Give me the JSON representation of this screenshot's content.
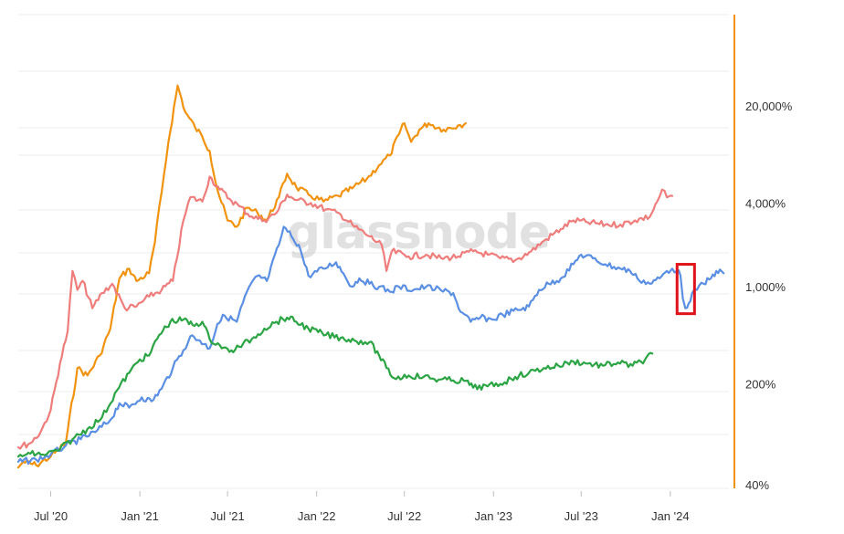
{
  "watermark": "glassnode",
  "chart_data": {
    "type": "line",
    "y_scale": "log",
    "ylim": [
      30,
      60000
    ],
    "grid": true,
    "x_ticks": [
      "Jul '20",
      "Jan '21",
      "Jul '21",
      "Jan '22",
      "Jul '22",
      "Jan '23",
      "Jul '23",
      "Jan '24"
    ],
    "y_ticks": [
      {
        "value": 40,
        "label": "40%"
      },
      {
        "value": 200,
        "label": "200%"
      },
      {
        "value": 1000,
        "label": "1,000%"
      },
      {
        "value": 4000,
        "label": "4,000%"
      },
      {
        "value": 20000,
        "label": "20,000%"
      }
    ],
    "series": [
      {
        "color": "#f2930f",
        "points": [
          [
            "2020-04-25",
            50
          ],
          [
            "2020-05-05",
            55
          ],
          [
            "2020-06-01",
            52
          ],
          [
            "2020-07-01",
            60
          ],
          [
            "2020-08-01",
            75
          ],
          [
            "2020-08-25",
            260
          ],
          [
            "2020-09-15",
            230
          ],
          [
            "2020-10-10",
            320
          ],
          [
            "2020-11-01",
            500
          ],
          [
            "2020-11-20",
            1150
          ],
          [
            "2020-12-10",
            1350
          ],
          [
            "2020-12-25",
            1100
          ],
          [
            "2021-01-20",
            1250
          ],
          [
            "2021-02-01",
            2100
          ],
          [
            "2021-02-15",
            4800
          ],
          [
            "2021-03-01",
            11000
          ],
          [
            "2021-03-20",
            28000
          ],
          [
            "2021-04-05",
            18000
          ],
          [
            "2021-04-25",
            14000
          ],
          [
            "2021-05-10",
            12000
          ],
          [
            "2021-05-25",
            9500
          ],
          [
            "2021-06-10",
            5000
          ],
          [
            "2021-07-01",
            3000
          ],
          [
            "2021-07-20",
            2700
          ],
          [
            "2021-08-10",
            3700
          ],
          [
            "2021-09-01",
            3400
          ],
          [
            "2021-09-20",
            3000
          ],
          [
            "2021-10-15",
            4400
          ],
          [
            "2021-11-01",
            6500
          ],
          [
            "2021-11-20",
            5200
          ],
          [
            "2021-12-15",
            4600
          ],
          [
            "2022-01-15",
            4100
          ],
          [
            "2022-02-15",
            4500
          ],
          [
            "2022-03-15",
            5100
          ],
          [
            "2022-04-15",
            6000
          ],
          [
            "2022-05-10",
            7500
          ],
          [
            "2022-06-01",
            8800
          ],
          [
            "2022-06-20",
            12500
          ],
          [
            "2022-07-01",
            15000
          ],
          [
            "2022-07-15",
            11000
          ],
          [
            "2022-08-01",
            13500
          ],
          [
            "2022-08-20",
            15000
          ],
          [
            "2022-09-20",
            13500
          ],
          [
            "2022-10-20",
            14500
          ],
          [
            "2022-11-05",
            15000
          ]
        ]
      },
      {
        "color": "#ee7d7b",
        "points": [
          [
            "2020-04-25",
            70
          ],
          [
            "2020-05-20",
            75
          ],
          [
            "2020-06-10",
            90
          ],
          [
            "2020-07-01",
            130
          ],
          [
            "2020-07-20",
            280
          ],
          [
            "2020-08-05",
            480
          ],
          [
            "2020-08-15",
            1300
          ],
          [
            "2020-08-25",
            950
          ],
          [
            "2020-09-05",
            1100
          ],
          [
            "2020-09-25",
            700
          ],
          [
            "2020-10-15",
            900
          ],
          [
            "2020-11-05",
            1050
          ],
          [
            "2020-12-01",
            700
          ],
          [
            "2020-12-25",
            720
          ],
          [
            "2021-01-20",
            850
          ],
          [
            "2021-02-15",
            950
          ],
          [
            "2021-03-10",
            1100
          ],
          [
            "2021-04-01",
            3000
          ],
          [
            "2021-04-15",
            4400
          ],
          [
            "2021-05-10",
            4100
          ],
          [
            "2021-05-25",
            6200
          ],
          [
            "2021-06-15",
            5000
          ],
          [
            "2021-07-05",
            4300
          ],
          [
            "2021-07-25",
            3800
          ],
          [
            "2021-08-20",
            3200
          ],
          [
            "2021-09-15",
            3000
          ],
          [
            "2021-10-10",
            3400
          ],
          [
            "2021-11-01",
            4600
          ],
          [
            "2021-11-20",
            4200
          ],
          [
            "2021-12-20",
            4000
          ],
          [
            "2022-01-20",
            3600
          ],
          [
            "2022-02-20",
            3300
          ],
          [
            "2022-03-20",
            2700
          ],
          [
            "2022-04-20",
            2300
          ],
          [
            "2022-05-15",
            2000
          ],
          [
            "2022-05-25",
            1300
          ],
          [
            "2022-06-05",
            1800
          ],
          [
            "2022-07-10",
            1650
          ],
          [
            "2022-08-15",
            1700
          ],
          [
            "2022-09-15",
            1600
          ],
          [
            "2022-10-20",
            1650
          ],
          [
            "2022-11-20",
            1800
          ],
          [
            "2022-12-20",
            1700
          ],
          [
            "2023-01-15",
            1600
          ],
          [
            "2023-02-15",
            1550
          ],
          [
            "2023-03-20",
            1800
          ],
          [
            "2023-04-20",
            2200
          ],
          [
            "2023-05-20",
            2600
          ],
          [
            "2023-06-15",
            3000
          ],
          [
            "2023-07-15",
            2900
          ],
          [
            "2023-08-20",
            2800
          ],
          [
            "2023-09-20",
            2800
          ],
          [
            "2023-10-20",
            3000
          ],
          [
            "2023-11-20",
            3200
          ],
          [
            "2023-12-05",
            4100
          ],
          [
            "2023-12-15",
            5000
          ],
          [
            "2023-12-25",
            4400
          ],
          [
            "2024-01-05",
            4500
          ]
        ]
      },
      {
        "color": "#5b8fe3",
        "points": [
          [
            "2020-04-25",
            55
          ],
          [
            "2020-06-01",
            57
          ],
          [
            "2020-07-01",
            62
          ],
          [
            "2020-08-01",
            72
          ],
          [
            "2020-09-01",
            80
          ],
          [
            "2020-10-01",
            90
          ],
          [
            "2020-11-01",
            110
          ],
          [
            "2020-11-20",
            145
          ],
          [
            "2020-12-10",
            135
          ],
          [
            "2021-01-05",
            160
          ],
          [
            "2021-01-25",
            150
          ],
          [
            "2021-02-15",
            185
          ],
          [
            "2021-03-10",
            260
          ],
          [
            "2021-04-01",
            350
          ],
          [
            "2021-04-15",
            440
          ],
          [
            "2021-05-05",
            410
          ],
          [
            "2021-05-25",
            360
          ],
          [
            "2021-06-10",
            540
          ],
          [
            "2021-06-25",
            620
          ],
          [
            "2021-07-20",
            560
          ],
          [
            "2021-08-10",
            920
          ],
          [
            "2021-09-01",
            1200
          ],
          [
            "2021-09-20",
            1100
          ],
          [
            "2021-10-15",
            2000
          ],
          [
            "2021-10-25",
            2700
          ],
          [
            "2021-11-10",
            2300
          ],
          [
            "2021-11-25",
            2000
          ],
          [
            "2021-12-15",
            1200
          ],
          [
            "2022-01-15",
            1350
          ],
          [
            "2022-02-10",
            1500
          ],
          [
            "2022-02-25",
            1250
          ],
          [
            "2022-03-15",
            1000
          ],
          [
            "2022-03-30",
            1150
          ],
          [
            "2022-04-20",
            1050
          ],
          [
            "2022-05-10",
            1000
          ],
          [
            "2022-06-01",
            920
          ],
          [
            "2022-06-20",
            1000
          ],
          [
            "2022-07-20",
            950
          ],
          [
            "2022-08-15",
            1000
          ],
          [
            "2022-09-15",
            940
          ],
          [
            "2022-10-10",
            900
          ],
          [
            "2022-10-25",
            660
          ],
          [
            "2022-11-15",
            560
          ],
          [
            "2022-12-05",
            600
          ],
          [
            "2022-12-30",
            580
          ],
          [
            "2023-01-20",
            630
          ],
          [
            "2023-02-20",
            680
          ],
          [
            "2023-03-15",
            720
          ],
          [
            "2023-04-05",
            950
          ],
          [
            "2023-04-25",
            1050
          ],
          [
            "2023-05-20",
            1150
          ],
          [
            "2023-06-15",
            1450
          ],
          [
            "2023-07-01",
            1700
          ],
          [
            "2023-07-25",
            1600
          ],
          [
            "2023-08-20",
            1450
          ],
          [
            "2023-09-20",
            1350
          ],
          [
            "2023-10-10",
            1300
          ],
          [
            "2023-10-25",
            1150
          ],
          [
            "2023-11-20",
            1050
          ],
          [
            "2023-12-10",
            1150
          ],
          [
            "2023-12-25",
            1300
          ],
          [
            "2024-01-05",
            1350
          ],
          [
            "2024-01-15",
            1300
          ],
          [
            "2024-01-22",
            1200
          ],
          [
            "2024-01-27",
            820
          ],
          [
            "2024-02-01",
            700
          ],
          [
            "2024-02-08",
            760
          ],
          [
            "2024-02-15",
            900
          ],
          [
            "2024-02-25",
            950
          ],
          [
            "2024-03-10",
            1050
          ],
          [
            "2024-03-25",
            1150
          ],
          [
            "2024-04-05",
            1300
          ],
          [
            "2024-04-20",
            1250
          ]
        ]
      },
      {
        "color": "#2ba443",
        "points": [
          [
            "2020-04-25",
            60
          ],
          [
            "2020-05-20",
            63
          ],
          [
            "2020-06-15",
            62
          ],
          [
            "2020-07-15",
            66
          ],
          [
            "2020-08-15",
            80
          ],
          [
            "2020-09-15",
            95
          ],
          [
            "2020-10-15",
            115
          ],
          [
            "2020-11-15",
            180
          ],
          [
            "2020-12-10",
            240
          ],
          [
            "2021-01-01",
            300
          ],
          [
            "2021-01-20",
            320
          ],
          [
            "2021-02-10",
            450
          ],
          [
            "2021-03-05",
            560
          ],
          [
            "2021-04-01",
            580
          ],
          [
            "2021-04-20",
            530
          ],
          [
            "2021-05-10",
            560
          ],
          [
            "2021-05-25",
            420
          ],
          [
            "2021-06-15",
            380
          ],
          [
            "2021-07-05",
            340
          ],
          [
            "2021-07-25",
            370
          ],
          [
            "2021-08-20",
            420
          ],
          [
            "2021-09-15",
            500
          ],
          [
            "2021-10-10",
            560
          ],
          [
            "2021-11-01",
            600
          ],
          [
            "2021-11-20",
            560
          ],
          [
            "2021-12-15",
            500
          ],
          [
            "2022-01-20",
            450
          ],
          [
            "2022-02-20",
            430
          ],
          [
            "2022-03-20",
            410
          ],
          [
            "2022-04-20",
            400
          ],
          [
            "2022-05-10",
            320
          ],
          [
            "2022-05-25",
            260
          ],
          [
            "2022-06-10",
            220
          ],
          [
            "2022-07-10",
            230
          ],
          [
            "2022-08-10",
            225
          ],
          [
            "2022-09-10",
            215
          ],
          [
            "2022-10-10",
            212
          ],
          [
            "2022-11-05",
            210
          ],
          [
            "2022-11-20",
            188
          ],
          [
            "2022-12-20",
            192
          ],
          [
            "2023-01-15",
            200
          ],
          [
            "2023-02-15",
            225
          ],
          [
            "2023-03-15",
            240
          ],
          [
            "2023-04-15",
            260
          ],
          [
            "2023-05-15",
            270
          ],
          [
            "2023-06-15",
            290
          ],
          [
            "2023-07-15",
            280
          ],
          [
            "2023-08-15",
            270
          ],
          [
            "2023-09-15",
            285
          ],
          [
            "2023-10-15",
            270
          ],
          [
            "2023-11-10",
            300
          ],
          [
            "2023-11-25",
            330
          ]
        ]
      }
    ],
    "annotations": [
      {
        "type": "rectangle",
        "color": "#e0131a",
        "x_range": [
          "2024-01-15",
          "2024-02-20"
        ],
        "y_range": [
          640,
          1450
        ]
      }
    ]
  }
}
